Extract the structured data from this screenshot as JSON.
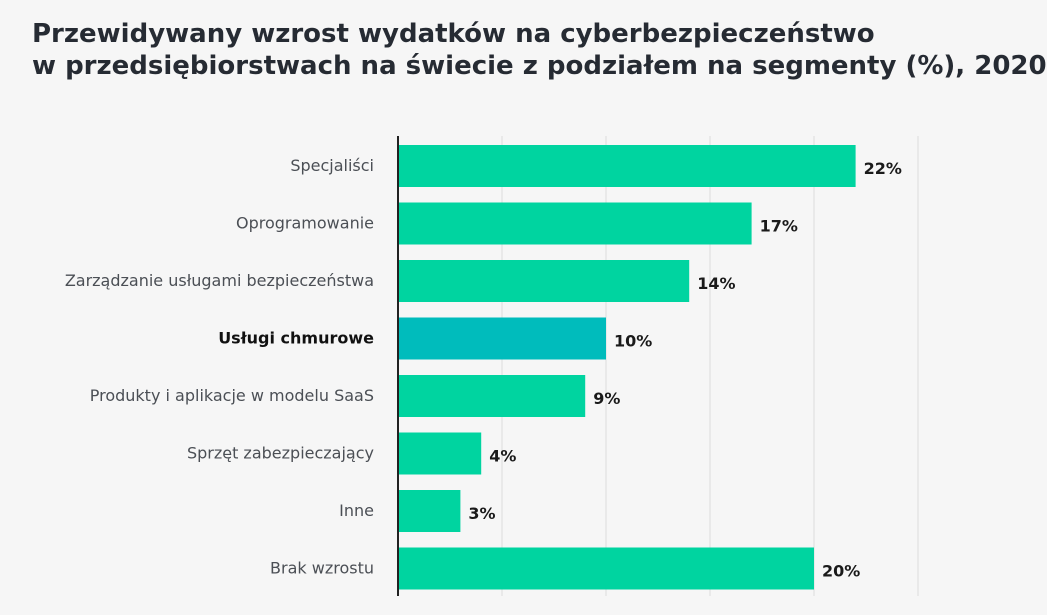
{
  "chart_data": {
    "type": "bar",
    "orientation": "horizontal",
    "title": "Przewidywany wzrost wydatków na cyberbezpieczeństwo w przedsiębiorstwach na świecie z podziałem na segmenty  (%), 2020",
    "title_lines": [
      "Przewidywany wzrost wydatków na cyberbezpieczeństwo",
      "w przedsiębiorstwach na świecie z podziałem na segmenty  (%), 2020"
    ],
    "categories": [
      "Specjaliści",
      "Oprogramowanie",
      "Zarządzanie usługami bezpieczeństwa",
      "Usługi chmurowe",
      "Produkty i aplikacje w modelu SaaS",
      "Sprzęt zabezpieczający",
      "Inne",
      "Brak wzrostu"
    ],
    "values": [
      22,
      17,
      14,
      10,
      9,
      4,
      3,
      20
    ],
    "value_labels": [
      "22%",
      "17%",
      "14%",
      "10%",
      "9%",
      "4%",
      "3%",
      "20%"
    ],
    "highlighted_category": "Usługi chmurowe",
    "xlim": [
      0,
      25
    ],
    "grid": true,
    "colors": {
      "bar": "#00d4a0",
      "highlight": "#00bcbc",
      "grid": "#dcdcdc",
      "axis": "#222222"
    }
  }
}
